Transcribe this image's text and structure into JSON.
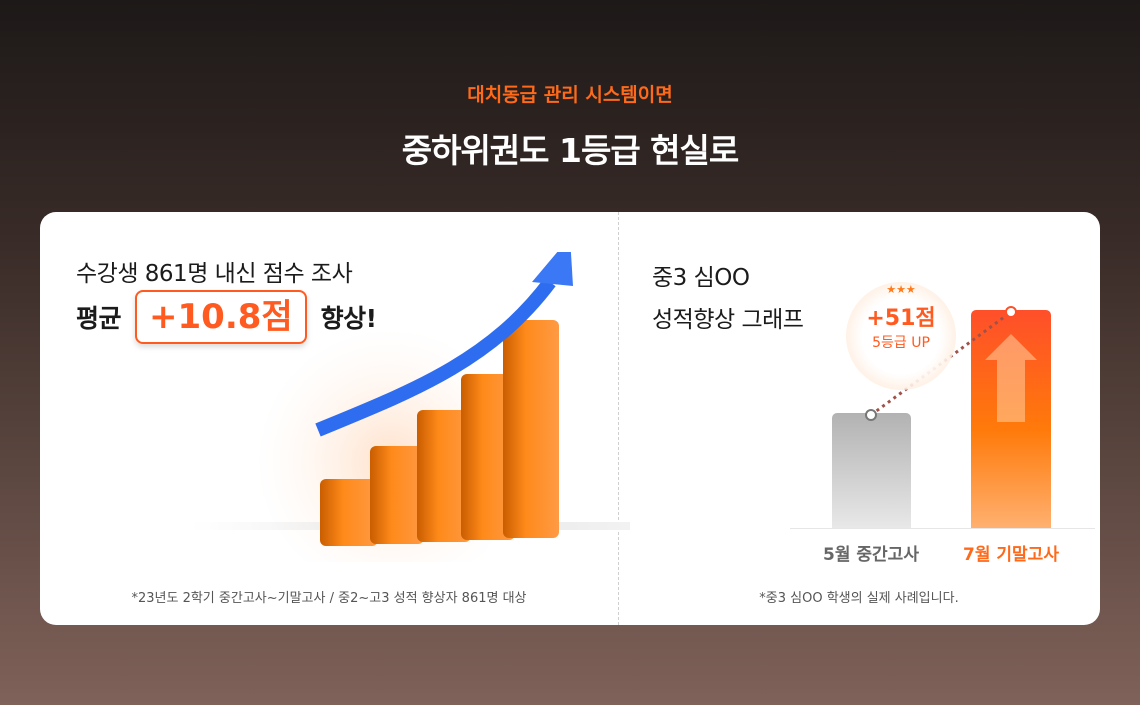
{
  "header": {
    "eyebrow": "대치동급 관리 시스템이면",
    "headline": "중하위권도 1등급 현실로"
  },
  "left": {
    "title": "수강생 861명 내신 점수 조사",
    "prefix": "평균",
    "highlight": "+10.8점",
    "suffix": "향상!",
    "footnote": "*23년도 2학기 중간고사~기말고사 / 중2~고3 성적 향상자 861명 대상"
  },
  "right": {
    "title_line1": "중3 심OO",
    "title_line2": "성적향상 그래프",
    "badge_score": "+51점",
    "badge_grade": "5등급 UP",
    "bars": [
      {
        "label": "5월 중간고사"
      },
      {
        "label": "7월 기말고사"
      }
    ],
    "footnote": "*중3 심OO 학생의 실제 사례입니다."
  },
  "colors": {
    "accent": "#ff5a1f",
    "eyebrow": "#ff6a1a",
    "arrow": "#2f6df0",
    "gray_bar": "#b4b4b4"
  }
}
